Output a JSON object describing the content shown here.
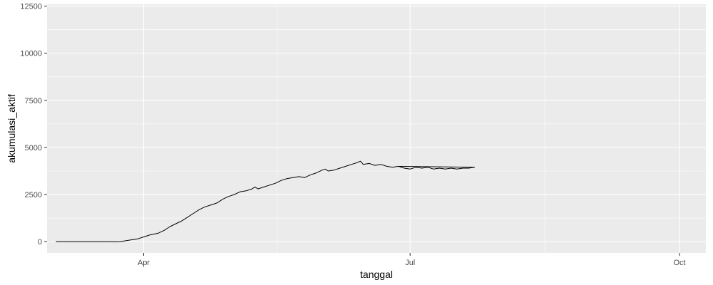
{
  "chart_data": {
    "type": "line",
    "title": "",
    "xlabel": "tanggal",
    "ylabel": "akumulasi_aktif",
    "x_ticks": [
      {
        "date": "2020-04-01",
        "label": "Apr"
      },
      {
        "date": "2020-07-01",
        "label": "Jul"
      },
      {
        "date": "2020-10-01",
        "label": "Oct"
      }
    ],
    "y_ticks": [
      0,
      2500,
      5000,
      7500,
      10000,
      12500
    ],
    "xlim": [
      "2020-02-28",
      "2020-10-10"
    ],
    "ylim": [
      -600,
      12600
    ],
    "grid": true,
    "colors": {
      "panel": "#ebebeb",
      "grid": "#ffffff",
      "line": "#000000"
    },
    "series": [
      {
        "points": [
          [
            "2020-03-02",
            0
          ],
          [
            "2020-03-10",
            0
          ],
          [
            "2020-03-20",
            0
          ],
          [
            "2020-03-22",
            -10
          ],
          [
            "2020-03-24",
            0
          ],
          [
            "2020-03-26",
            50
          ],
          [
            "2020-03-28",
            100
          ],
          [
            "2020-03-30",
            150
          ],
          [
            "2020-04-01",
            250
          ],
          [
            "2020-04-03",
            350
          ],
          [
            "2020-04-06",
            450
          ],
          [
            "2020-04-08",
            600
          ],
          [
            "2020-04-10",
            800
          ],
          [
            "2020-04-12",
            950
          ],
          [
            "2020-04-14",
            1100
          ],
          [
            "2020-04-16",
            1300
          ],
          [
            "2020-04-18",
            1500
          ],
          [
            "2020-04-20",
            1700
          ],
          [
            "2020-04-22",
            1850
          ],
          [
            "2020-04-24",
            1950
          ],
          [
            "2020-04-26",
            2050
          ],
          [
            "2020-04-28",
            2250
          ],
          [
            "2020-04-30",
            2400
          ],
          [
            "2020-05-02",
            2500
          ],
          [
            "2020-05-04",
            2650
          ],
          [
            "2020-05-06",
            2700
          ],
          [
            "2020-05-08",
            2800
          ],
          [
            "2020-05-09",
            2900
          ],
          [
            "2020-05-10",
            2800
          ],
          [
            "2020-05-12",
            2900
          ],
          [
            "2020-05-14",
            3000
          ],
          [
            "2020-05-16",
            3100
          ],
          [
            "2020-05-18",
            3250
          ],
          [
            "2020-05-20",
            3350
          ],
          [
            "2020-05-22",
            3400
          ],
          [
            "2020-05-24",
            3450
          ],
          [
            "2020-05-26",
            3400
          ],
          [
            "2020-05-28",
            3550
          ],
          [
            "2020-05-30",
            3650
          ],
          [
            "2020-06-01",
            3800
          ],
          [
            "2020-06-02",
            3850
          ],
          [
            "2020-06-03",
            3750
          ],
          [
            "2020-06-05",
            3800
          ],
          [
            "2020-06-07",
            3900
          ],
          [
            "2020-06-09",
            4000
          ],
          [
            "2020-06-11",
            4100
          ],
          [
            "2020-06-13",
            4200
          ],
          [
            "2020-06-14",
            4270
          ],
          [
            "2020-06-15",
            4100
          ],
          [
            "2020-06-17",
            4150
          ],
          [
            "2020-06-19",
            4050
          ],
          [
            "2020-06-21",
            4100
          ],
          [
            "2020-06-23",
            4000
          ],
          [
            "2020-06-25",
            3950
          ],
          [
            "2020-06-27",
            4000
          ],
          [
            "2020-06-29",
            3900
          ],
          [
            "2020-07-01",
            3850
          ],
          [
            "2020-07-03",
            3950
          ],
          [
            "2020-07-05",
            3900
          ],
          [
            "2020-07-07",
            3950
          ],
          [
            "2020-07-09",
            3850
          ],
          [
            "2020-07-11",
            3900
          ],
          [
            "2020-07-13",
            3850
          ],
          [
            "2020-07-15",
            3900
          ],
          [
            "2020-07-17",
            3850
          ],
          [
            "2020-07-19",
            3900
          ],
          [
            "2020-07-21",
            3900
          ],
          [
            "2020-07-23",
            3950
          ],
          [
            "2020-06-27",
            4000
          ]
        ]
      }
    ]
  }
}
